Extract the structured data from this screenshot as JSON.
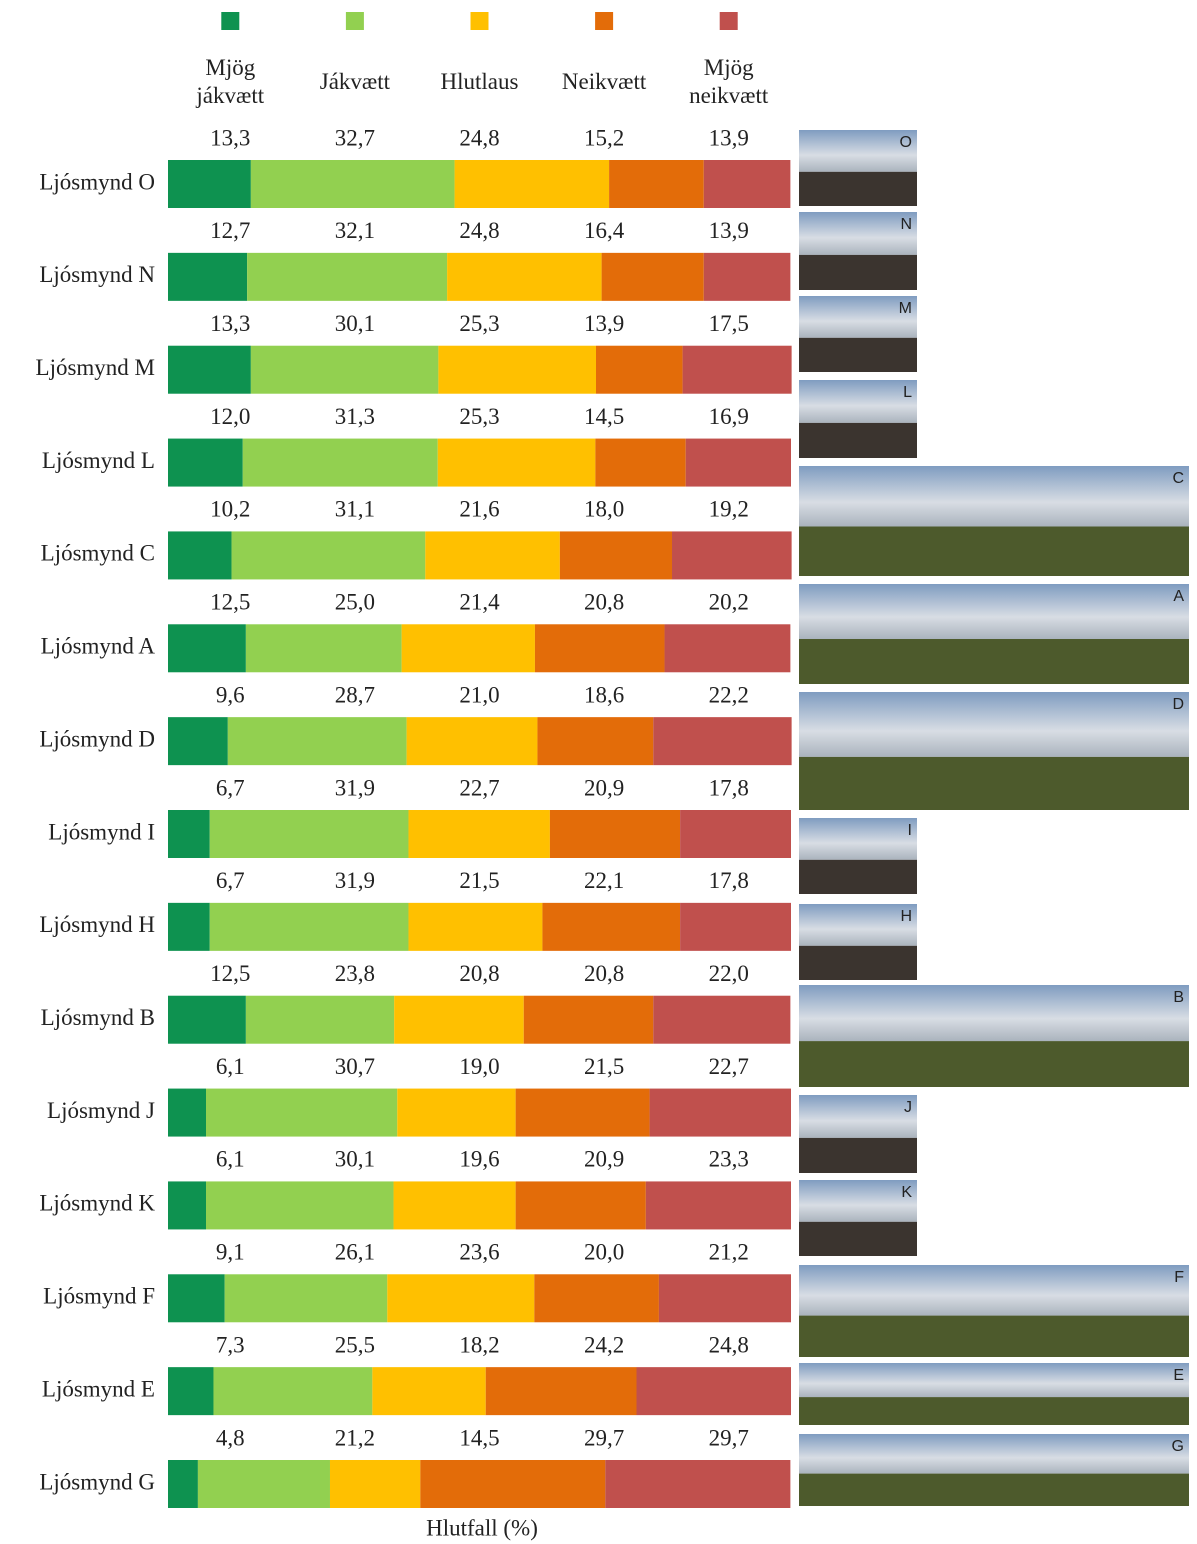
{
  "chart_data": {
    "type": "stacked-bar-horizontal",
    "x_label": "Hlutfall (%)",
    "xlim": [
      0,
      100
    ],
    "categories": [
      "Ljósmynd O",
      "Ljósmynd N",
      "Ljósmynd M",
      "Ljósmynd L",
      "Ljósmynd C",
      "Ljósmynd A",
      "Ljósmynd D",
      "Ljósmynd I",
      "Ljósmynd H",
      "Ljósmynd B",
      "Ljósmynd J",
      "Ljósmynd K",
      "Ljósmynd F",
      "Ljósmynd E",
      "Ljósmynd G"
    ],
    "image_labels": [
      "O",
      "N",
      "M",
      "L",
      "C",
      "A",
      "D",
      "I",
      "H",
      "B",
      "J",
      "K",
      "F",
      "E",
      "G"
    ],
    "series": [
      {
        "name": "Mjög jákvætt",
        "color": "#0e9250",
        "values": [
          13.3,
          12.7,
          13.3,
          12.0,
          10.2,
          12.5,
          9.6,
          6.7,
          6.7,
          12.5,
          6.1,
          6.1,
          9.1,
          7.3,
          4.8
        ],
        "value_labels": [
          "13,3",
          "12,7",
          "13,3",
          "12,0",
          "10,2",
          "12,5",
          "9,6",
          "6,7",
          "6,7",
          "12,5",
          "6,1",
          "6,1",
          "9,1",
          "7,3",
          "4,8"
        ]
      },
      {
        "name": "Jákvætt",
        "color": "#92d050",
        "values": [
          32.7,
          32.1,
          30.1,
          31.3,
          31.1,
          25.0,
          28.7,
          31.9,
          31.9,
          23.8,
          30.7,
          30.1,
          26.1,
          25.5,
          21.2
        ],
        "value_labels": [
          "32,7",
          "32,1",
          "30,1",
          "31,3",
          "31,1",
          "25,0",
          "28,7",
          "31,9",
          "31,9",
          "23,8",
          "30,7",
          "30,1",
          "26,1",
          "25,5",
          "21,2"
        ]
      },
      {
        "name": "Hlutlaus",
        "color": "#ffc000",
        "values": [
          24.8,
          24.8,
          25.3,
          25.3,
          21.6,
          21.4,
          21.0,
          22.7,
          21.5,
          20.8,
          19.0,
          19.6,
          23.6,
          18.2,
          14.5
        ],
        "value_labels": [
          "24,8",
          "24,8",
          "25,3",
          "25,3",
          "21,6",
          "21,4",
          "21,0",
          "22,7",
          "21,5",
          "20,8",
          "19,0",
          "19,6",
          "23,6",
          "18,2",
          "14,5"
        ]
      },
      {
        "name": "Neikvætt",
        "color": "#e36c09",
        "values": [
          15.2,
          16.4,
          13.9,
          14.5,
          18.0,
          20.8,
          18.6,
          20.9,
          22.1,
          20.8,
          21.5,
          20.9,
          20.0,
          24.2,
          29.7
        ],
        "value_labels": [
          "15,2",
          "16,4",
          "13,9",
          "14,5",
          "18,0",
          "20,8",
          "18,6",
          "20,9",
          "22,1",
          "20,8",
          "21,5",
          "20,9",
          "20,0",
          "24,2",
          "29,7"
        ]
      },
      {
        "name": "Mjög neikvætt",
        "color": "#c0504d",
        "values": [
          13.9,
          13.9,
          17.5,
          16.9,
          19.2,
          20.2,
          22.2,
          17.8,
          17.8,
          22.0,
          22.7,
          23.3,
          21.2,
          24.8,
          29.7
        ],
        "value_labels": [
          "13,9",
          "13,9",
          "17,5",
          "16,9",
          "19,2",
          "20,2",
          "22,2",
          "17,8",
          "17,8",
          "22,0",
          "22,7",
          "23,3",
          "21,2",
          "24,8",
          "29,7"
        ]
      }
    ]
  }
}
